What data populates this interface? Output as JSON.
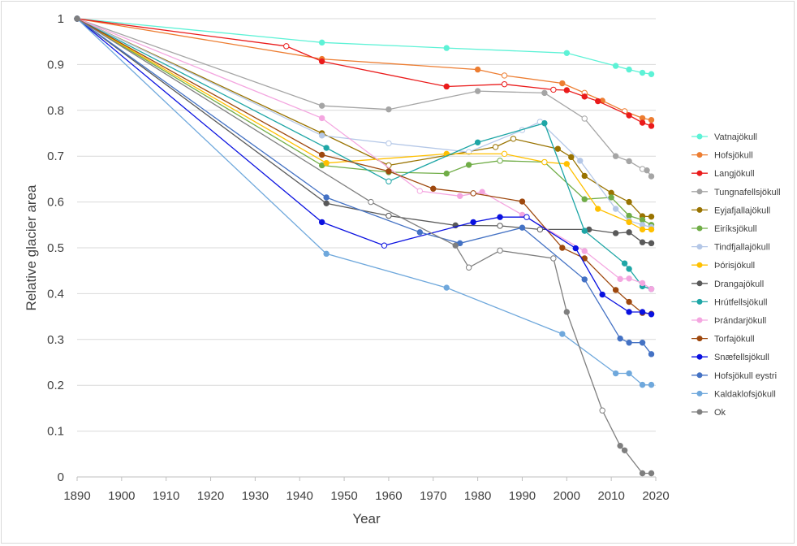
{
  "chart_data": {
    "type": "line",
    "title": "",
    "xlabel": "Year",
    "ylabel": "Relative glacier area",
    "xlim": [
      1890,
      2020
    ],
    "ylim": [
      0,
      1
    ],
    "x_ticks": [
      1890,
      1900,
      1910,
      1920,
      1930,
      1940,
      1950,
      1960,
      1970,
      1980,
      1990,
      2000,
      2010,
      2020
    ],
    "y_ticks": [
      0,
      0.1,
      0.2,
      0.3,
      0.4,
      0.5,
      0.6,
      0.7,
      0.8,
      0.9,
      1
    ],
    "y_tick_labels": [
      "0",
      "0.1",
      "0.2",
      "0.3",
      "0.4",
      "0.5",
      "0.6",
      "0.7",
      "0.8",
      "0.9",
      "1"
    ],
    "grid": "horizontal",
    "legend_position": "right",
    "series": [
      {
        "name": "Vatnajökull",
        "color": "#5df2d6",
        "points": [
          [
            1890,
            1
          ],
          [
            1945,
            0.948
          ],
          [
            1973,
            0.936
          ],
          [
            2000,
            0.925
          ],
          [
            2011,
            0.897
          ],
          [
            2014,
            0.889
          ],
          [
            2017,
            0.882
          ],
          [
            2019,
            0.879
          ]
        ],
        "hollow": []
      },
      {
        "name": "Hofsjökull",
        "color": "#ed7d31",
        "points": [
          [
            1890,
            1
          ],
          [
            1945,
            0.912
          ],
          [
            1980,
            0.889
          ],
          [
            1986,
            0.876
          ],
          [
            1999,
            0.859
          ],
          [
            2004,
            0.838
          ],
          [
            2008,
            0.821
          ],
          [
            2013,
            0.798
          ],
          [
            2017,
            0.783
          ],
          [
            2019,
            0.779
          ]
        ],
        "hollow": [
          1986,
          2004,
          2013
        ]
      },
      {
        "name": "Langjökull",
        "color": "#ea1b1b",
        "points": [
          [
            1890,
            1
          ],
          [
            1937,
            0.94
          ],
          [
            1945,
            0.907
          ],
          [
            1973,
            0.852
          ],
          [
            1986,
            0.857
          ],
          [
            1997,
            0.845
          ],
          [
            2000,
            0.844
          ],
          [
            2004,
            0.83
          ],
          [
            2007,
            0.82
          ],
          [
            2014,
            0.789
          ],
          [
            2017,
            0.773
          ],
          [
            2019,
            0.766
          ]
        ],
        "hollow": [
          1937,
          1986,
          1997
        ]
      },
      {
        "name": "Tungnafellsjökull",
        "color": "#a5a5a5",
        "points": [
          [
            1890,
            1
          ],
          [
            1945,
            0.81
          ],
          [
            1960,
            0.802
          ],
          [
            1980,
            0.842
          ],
          [
            1995,
            0.838
          ],
          [
            2004,
            0.782
          ],
          [
            2011,
            0.7
          ],
          [
            2014,
            0.689
          ],
          [
            2017,
            0.672
          ],
          [
            2018,
            0.669
          ],
          [
            2019,
            0.656
          ]
        ],
        "hollow": [
          2004,
          2017
        ]
      },
      {
        "name": "Eyjafjallajökull",
        "color": "#997300",
        "points": [
          [
            1890,
            1
          ],
          [
            1945,
            0.75
          ],
          [
            1960,
            0.68
          ],
          [
            1984,
            0.72
          ],
          [
            1988,
            0.738
          ],
          [
            1998,
            0.716
          ],
          [
            2001,
            0.698
          ],
          [
            2004,
            0.657
          ],
          [
            2010,
            0.62
          ],
          [
            2014,
            0.6
          ],
          [
            2017,
            0.569
          ],
          [
            2019,
            0.568
          ]
        ],
        "hollow": [
          1960,
          1984,
          1988
        ]
      },
      {
        "name": "Eiríksjökull",
        "color": "#70ad47",
        "points": [
          [
            1890,
            1
          ],
          [
            1945,
            0.68
          ],
          [
            1960,
            0.665
          ],
          [
            1973,
            0.662
          ],
          [
            1978,
            0.681
          ],
          [
            1985,
            0.69
          ],
          [
            1995,
            0.687
          ],
          [
            2004,
            0.606
          ],
          [
            2010,
            0.61
          ],
          [
            2014,
            0.57
          ],
          [
            2017,
            0.561
          ],
          [
            2019,
            0.55
          ]
        ],
        "hollow": [
          1985,
          1995
        ]
      },
      {
        "name": "Tindfjallajökull",
        "color": "#b4c7e7",
        "points": [
          [
            1890,
            1
          ],
          [
            1945,
            0.745
          ],
          [
            1960,
            0.728
          ],
          [
            1978,
            0.709
          ],
          [
            1990,
            0.757
          ],
          [
            1994,
            0.775
          ],
          [
            2003,
            0.69
          ],
          [
            2011,
            0.585
          ],
          [
            2014,
            0.559
          ],
          [
            2017,
            0.55
          ],
          [
            2019,
            0.545
          ]
        ],
        "hollow": [
          1960,
          1978,
          1990,
          1994
        ]
      },
      {
        "name": "Þórisjökull",
        "color": "#ffc000",
        "points": [
          [
            1890,
            1
          ],
          [
            1946,
            0.685
          ],
          [
            1973,
            0.705
          ],
          [
            1986,
            0.705
          ],
          [
            1995,
            0.687
          ],
          [
            2000,
            0.683
          ],
          [
            2007,
            0.585
          ],
          [
            2014,
            0.556
          ],
          [
            2017,
            0.54
          ],
          [
            2019,
            0.54
          ]
        ],
        "hollow": [
          1986,
          1995
        ]
      },
      {
        "name": "Drangajökull",
        "color": "#595959",
        "points": [
          [
            1890,
            1
          ],
          [
            1946,
            0.597
          ],
          [
            1960,
            0.57
          ],
          [
            1975,
            0.549
          ],
          [
            1985,
            0.548
          ],
          [
            1994,
            0.54
          ],
          [
            2005,
            0.54
          ],
          [
            2011,
            0.532
          ],
          [
            2014,
            0.534
          ],
          [
            2017,
            0.512
          ],
          [
            2019,
            0.51
          ]
        ],
        "hollow": [
          1960,
          1985,
          1994
        ]
      },
      {
        "name": "Hrútfellsjökull",
        "color": "#1ea6a6",
        "points": [
          [
            1890,
            1
          ],
          [
            1946,
            0.718
          ],
          [
            1960,
            0.645
          ],
          [
            1980,
            0.73
          ],
          [
            1995,
            0.772
          ],
          [
            2004,
            0.537
          ],
          [
            2013,
            0.466
          ],
          [
            2014,
            0.454
          ],
          [
            2017,
            0.416
          ],
          [
            2019,
            0.41
          ]
        ],
        "hollow": [
          1960
        ]
      },
      {
        "name": "Þrándarjökull",
        "color": "#f4a6e0",
        "points": [
          [
            1890,
            1
          ],
          [
            1945,
            0.783
          ],
          [
            1967,
            0.624
          ],
          [
            1976,
            0.613
          ],
          [
            1981,
            0.622
          ],
          [
            1990,
            0.572
          ],
          [
            2004,
            0.493
          ],
          [
            2012,
            0.432
          ],
          [
            2014,
            0.433
          ],
          [
            2017,
            0.423
          ],
          [
            2019,
            0.41
          ]
        ],
        "hollow": [
          1967
        ]
      },
      {
        "name": "Torfajökull",
        "color": "#9e480e",
        "points": [
          [
            1890,
            1
          ],
          [
            1945,
            0.703
          ],
          [
            1960,
            0.667
          ],
          [
            1970,
            0.629
          ],
          [
            1979,
            0.619
          ],
          [
            1990,
            0.601
          ],
          [
            1999,
            0.5
          ],
          [
            2004,
            0.477
          ],
          [
            2011,
            0.408
          ],
          [
            2014,
            0.382
          ],
          [
            2017,
            0.358
          ],
          [
            2019,
            0.356
          ]
        ],
        "hollow": [
          1979
        ]
      },
      {
        "name": "Snæfellsjökull",
        "color": "#0a11e0",
        "points": [
          [
            1890,
            1
          ],
          [
            1945,
            0.556
          ],
          [
            1959,
            0.505
          ],
          [
            1979,
            0.556
          ],
          [
            1985,
            0.567
          ],
          [
            1991,
            0.567
          ],
          [
            2002,
            0.499
          ],
          [
            2008,
            0.398
          ],
          [
            2014,
            0.36
          ],
          [
            2017,
            0.36
          ],
          [
            2019,
            0.355
          ]
        ],
        "hollow": [
          1959,
          1991
        ]
      },
      {
        "name": "Hofsjökull eystri",
        "color": "#4472c4",
        "points": [
          [
            1890,
            1
          ],
          [
            1946,
            0.61
          ],
          [
            1967,
            0.534
          ],
          [
            1976,
            0.51
          ],
          [
            1990,
            0.544
          ],
          [
            2004,
            0.431
          ],
          [
            2012,
            0.302
          ],
          [
            2014,
            0.293
          ],
          [
            2017,
            0.293
          ],
          [
            2019,
            0.268
          ]
        ],
        "hollow": []
      },
      {
        "name": "Kaldaklofsjökull",
        "color": "#6fa8dc",
        "points": [
          [
            1890,
            1
          ],
          [
            1946,
            0.487
          ],
          [
            1973,
            0.413
          ],
          [
            1999,
            0.312
          ],
          [
            2011,
            0.226
          ],
          [
            2014,
            0.226
          ],
          [
            2017,
            0.201
          ],
          [
            2019,
            0.201
          ]
        ],
        "hollow": []
      },
      {
        "name": "Ok",
        "color": "#7f7f7f",
        "points": [
          [
            1890,
            1
          ],
          [
            1956,
            0.6
          ],
          [
            1975,
            0.505
          ],
          [
            1978,
            0.457
          ],
          [
            1985,
            0.494
          ],
          [
            1997,
            0.477
          ],
          [
            2000,
            0.36
          ],
          [
            2008,
            0.145
          ],
          [
            2012,
            0.068
          ],
          [
            2013,
            0.058
          ],
          [
            2017,
            0.008
          ],
          [
            2019,
            0.008
          ]
        ],
        "hollow": [
          1956,
          1978,
          1985,
          1997,
          2008
        ]
      }
    ]
  }
}
